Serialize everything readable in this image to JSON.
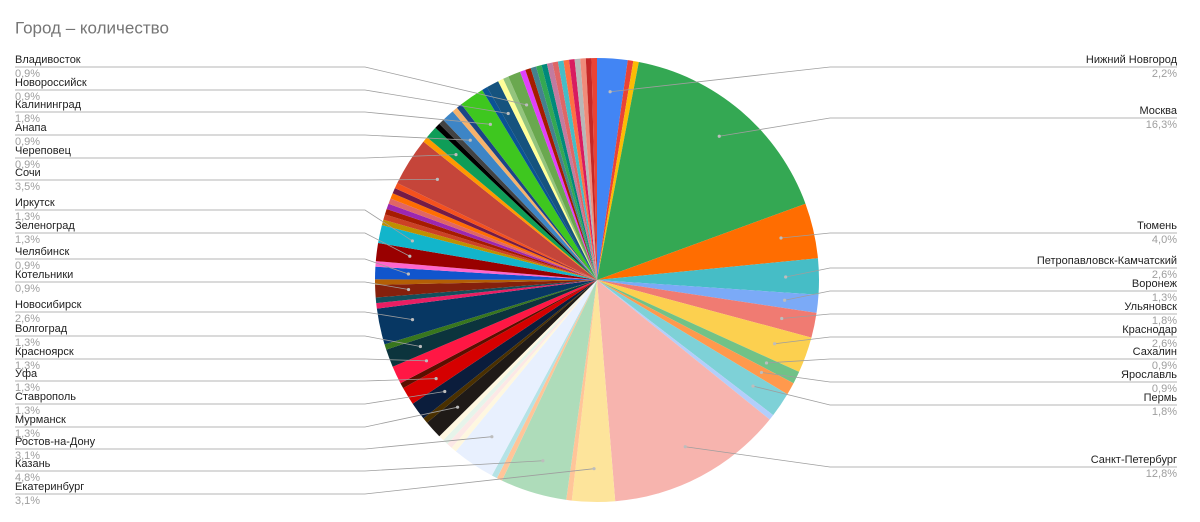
{
  "chart_data": {
    "type": "pie",
    "title": "Город – количество",
    "categories": [
      "Нижний Новгород",
      null,
      null,
      "Москва",
      "Тюмень",
      "Петропавловск-Камчатский",
      "Воронеж",
      "Ульяновск",
      "Краснодар",
      "Сахалин",
      "Ярославль",
      "Пермь",
      null,
      "Санкт-Петербург",
      "Екатеринбург",
      null,
      "Казань",
      null,
      null,
      "Ростов-на-Дону",
      null,
      null,
      null,
      null,
      "Мурманск",
      null,
      "Ставрополь",
      "Уфа",
      null,
      "Красноярск",
      "Волгоград",
      null,
      "Новосибирск",
      null,
      null,
      "Котельники",
      null,
      "Челябинск",
      null,
      "Зеленоград",
      "Иркутск",
      null,
      null,
      null,
      null,
      null,
      null,
      null,
      null,
      "Сочи",
      null,
      "Череповец",
      null,
      null,
      "Анапа",
      null,
      null,
      "Калининград",
      null,
      "Новороссийск",
      null,
      null,
      "Владивосток",
      null,
      null,
      null,
      null,
      null,
      null,
      null,
      null,
      null,
      null,
      null,
      null,
      null,
      null
    ],
    "values": [
      2.2,
      0.4,
      0.4,
      16.3,
      4.0,
      2.6,
      1.3,
      1.8,
      2.6,
      0.9,
      0.9,
      1.8,
      0.4,
      12.8,
      3.1,
      0.4,
      4.8,
      0.4,
      0.4,
      3.1,
      0.4,
      0.4,
      0.4,
      0.4,
      1.3,
      0.4,
      1.3,
      1.3,
      0.4,
      1.3,
      1.3,
      0.4,
      2.6,
      0.4,
      0.4,
      0.9,
      0.4,
      0.9,
      0.4,
      1.3,
      1.3,
      0.4,
      0.4,
      0.4,
      0.4,
      0.4,
      0.4,
      0.4,
      0.4,
      3.5,
      0.4,
      0.9,
      0.4,
      0.4,
      0.9,
      0.4,
      0.4,
      1.8,
      0.4,
      0.9,
      0.4,
      0.4,
      0.9,
      0.4,
      0.4,
      0.4,
      0.4,
      0.4,
      0.4,
      0.4,
      0.4,
      0.4,
      0.4,
      0.4,
      0.4,
      0.4,
      0.4
    ],
    "value_labels": [
      "2,2%",
      null,
      null,
      "16,3%",
      "4,0%",
      "2,6%",
      "1,3%",
      "1,8%",
      "2,6%",
      "0,9%",
      "0,9%",
      "1,8%",
      null,
      "12,8%",
      "3,1%",
      null,
      "4,8%",
      null,
      null,
      "3,1%",
      null,
      null,
      null,
      null,
      "1,3%",
      null,
      "1,3%",
      "1,3%",
      null,
      "1,3%",
      "1,3%",
      null,
      "2,6%",
      null,
      null,
      "0,9%",
      null,
      "0,9%",
      null,
      "1,3%",
      "1,3%",
      null,
      null,
      null,
      null,
      null,
      null,
      null,
      null,
      "3,5%",
      null,
      "0,9%",
      null,
      null,
      "0,9%",
      null,
      null,
      "1,8%",
      null,
      "0,9%",
      null,
      null,
      "0,9%",
      null,
      null,
      null,
      null,
      null,
      null,
      null,
      null,
      null,
      null,
      null,
      null,
      null,
      null
    ],
    "colors": [
      "#4285f4",
      "#ea4335",
      "#fbbc04",
      "#34a853",
      "#ff6d01",
      "#46bdc6",
      "#7baaf7",
      "#f07b72",
      "#fcd04f",
      "#71c287",
      "#ff994d",
      "#7ed1d7",
      "#b3cefb",
      "#f7b4ae",
      "#fde49b",
      "#ffc599",
      "#aedcba",
      "#ffc599",
      "#b5e3e6",
      "#e8f0fe",
      "#fef7e0",
      "#fce8e6",
      "#e6f4ea",
      "#fff8e1",
      "#1f1a17",
      "#4a3000",
      "#0b1d3c",
      "#d50000",
      "#5b0f00",
      "#ff1744",
      "#0c343d",
      "#38761d",
      "#073763",
      "#e91e63",
      "#134f5c",
      "#85200c",
      "#b45f06",
      "#1155cc",
      "#ff66cc",
      "#990000",
      "#12b5cb",
      "#bf9000",
      "#cc4125",
      "#a61c00",
      "#9c27b0",
      "#e06666",
      "#ff6d01",
      "#741b47",
      "#f4511e",
      "#c5453a",
      "#ff9900",
      "#0f9d58",
      "#000000",
      "#434343",
      "#3d85c6",
      "#f6b26b",
      "#1c4587",
      "#3ec71f",
      "#0b5394",
      "#16537e",
      "#ffff99",
      "#93c47d",
      "#6aa84f",
      "#e040fb",
      "#a61c00",
      "#45818e",
      "#34a853",
      "#00897b",
      "#c27ba0",
      "#e06666",
      "#46bdc6",
      "#ff7043",
      "#d81b60",
      "#b7b7b7",
      "#f08c7a",
      "#c62828",
      "#ea4335"
    ]
  }
}
